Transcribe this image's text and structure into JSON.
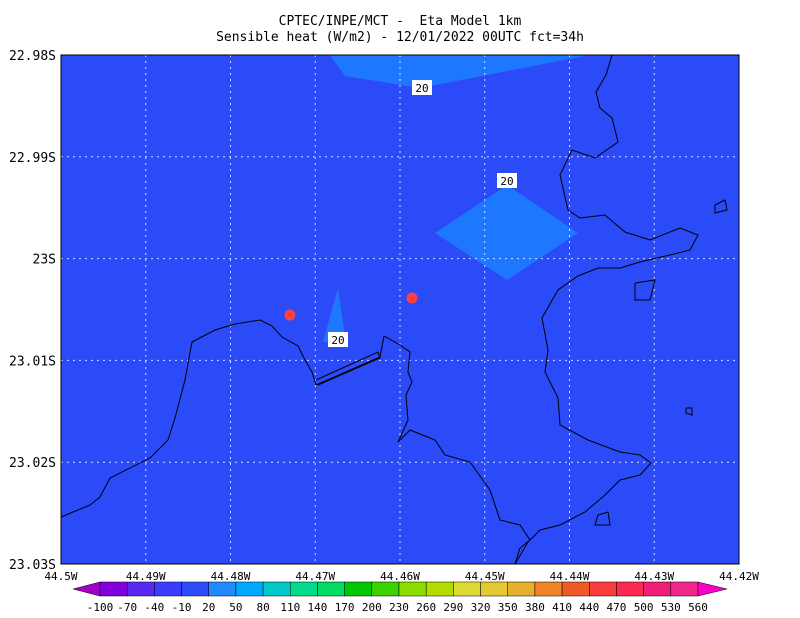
{
  "title": [
    "CPTEC/INPE/MCT -  Eta Model 1km",
    "Sensible heat (W/m2) - 12/01/2022 00UTC fct=34h"
  ],
  "lon_ticks": [
    "44.5W",
    "44.49W",
    "44.48W",
    "44.47W",
    "44.46W",
    "44.45W",
    "44.44W",
    "44.43W",
    "44.42W"
  ],
  "lat_ticks": [
    "22.98S",
    "22.99S",
    "23S",
    "23.01S",
    "23.02S",
    "23.03S"
  ],
  "contour_labels": [
    20,
    20,
    20
  ],
  "colorbar": {
    "labels": [
      -100,
      -70,
      -40,
      -10,
      20,
      50,
      80,
      110,
      140,
      170,
      200,
      230,
      260,
      290,
      320,
      350,
      380,
      410,
      440,
      470,
      500,
      530,
      560
    ],
    "colors": [
      "#a000c8",
      "#8200dc",
      "#5a28f0",
      "#3c3cff",
      "#2a4bf7",
      "#1e8cff",
      "#00aaff",
      "#00c8c8",
      "#00dc8c",
      "#00dc64",
      "#00c800",
      "#3cd200",
      "#8cdc00",
      "#b4dc00",
      "#dcdc32",
      "#e6c832",
      "#e6af2d",
      "#f08228",
      "#f05a28",
      "#fa3c3c",
      "#ff2850",
      "#f01e78",
      "#f0288c",
      "#ff00c8"
    ]
  }
}
